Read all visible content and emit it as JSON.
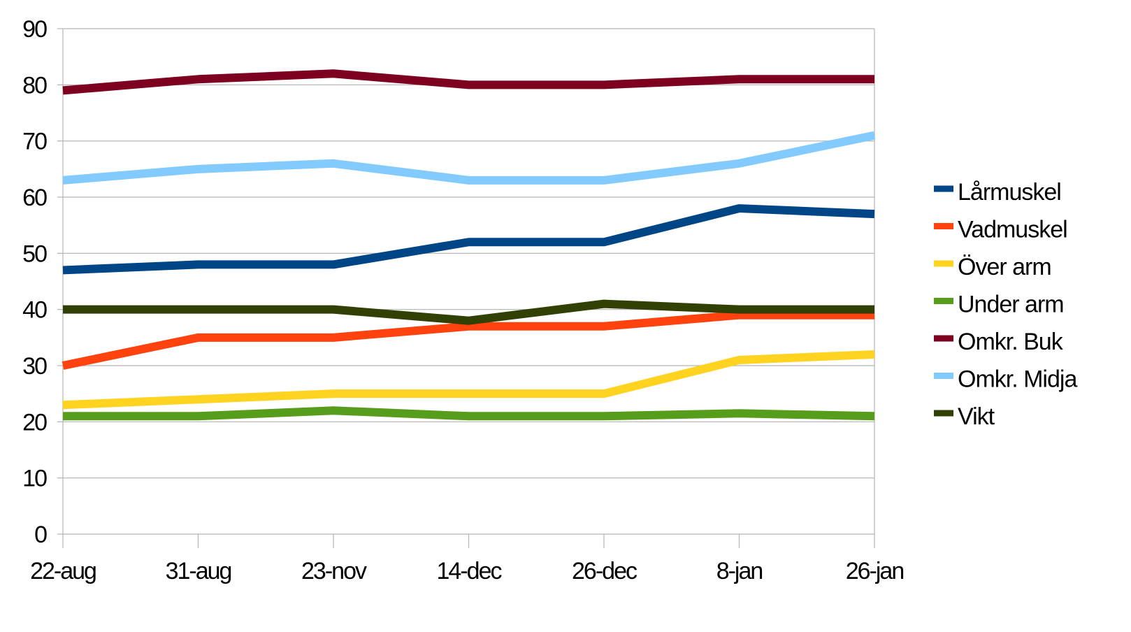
{
  "chart_data": {
    "type": "line",
    "categories": [
      "22-aug",
      "31-aug",
      "23-nov",
      "14-dec",
      "26-dec",
      "8-jan",
      "26-jan"
    ],
    "ylim": [
      0,
      90
    ],
    "yticks": [
      0,
      10,
      20,
      30,
      40,
      50,
      60,
      70,
      80,
      90
    ],
    "grid": true,
    "legend_position": "right",
    "series": [
      {
        "name": "Lårmuskel",
        "color": "#004586",
        "values": [
          47,
          48,
          48,
          52,
          52,
          58,
          57
        ]
      },
      {
        "name": "Vadmuskel",
        "color": "#ff420e",
        "values": [
          30,
          35,
          35,
          37,
          37,
          39,
          39
        ]
      },
      {
        "name": "Över arm",
        "color": "#ffd320",
        "values": [
          23,
          24,
          25,
          25,
          25,
          31,
          32
        ]
      },
      {
        "name": "Under arm",
        "color": "#579d1c",
        "values": [
          21,
          21,
          22,
          21,
          21,
          21.5,
          21
        ]
      },
      {
        "name": "Omkr. Buk",
        "color": "#7e0021",
        "values": [
          79,
          81,
          82,
          80,
          80,
          81,
          81
        ]
      },
      {
        "name": "Omkr. Midja",
        "color": "#83caff",
        "values": [
          63,
          65,
          66,
          63,
          63,
          66,
          71
        ]
      },
      {
        "name": "Vikt",
        "color": "#314004",
        "values": [
          40,
          40,
          40,
          38,
          41,
          40,
          40
        ]
      }
    ]
  }
}
